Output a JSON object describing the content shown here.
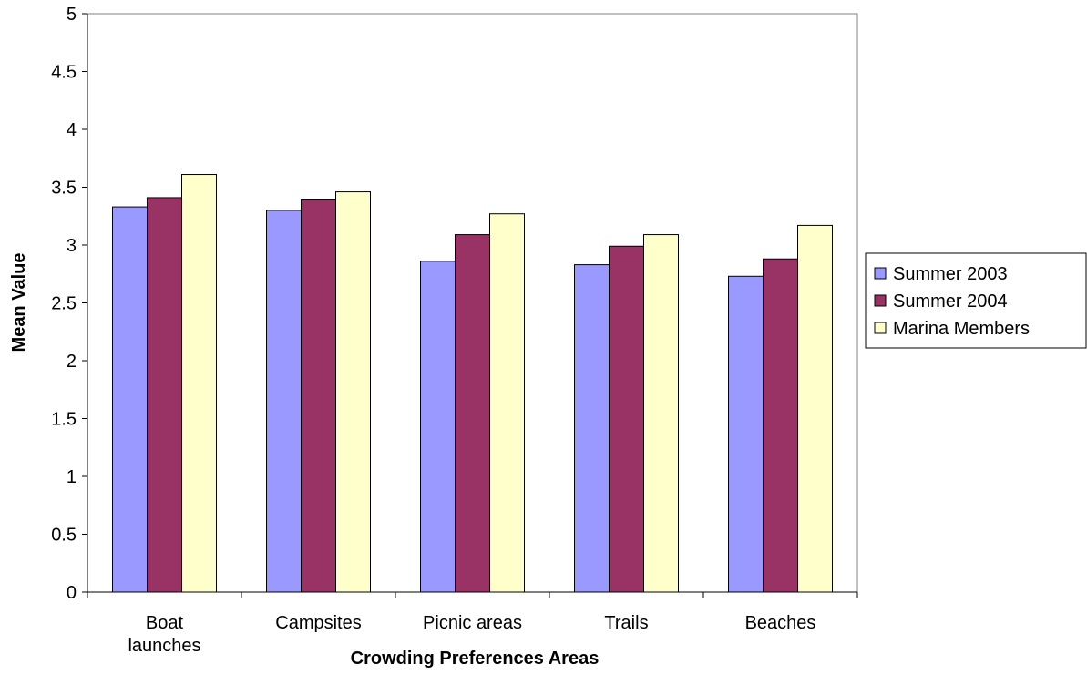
{
  "chart_data": {
    "type": "bar",
    "title": "",
    "xlabel": "Crowding Preferences Areas",
    "ylabel": "Mean Value",
    "ylim": [
      0,
      5
    ],
    "yticks": [
      "0",
      "0.5",
      "1",
      "1.5",
      "2",
      "2.5",
      "3",
      "3.5",
      "4",
      "4.5",
      "5"
    ],
    "ytick_values": [
      0,
      0.5,
      1,
      1.5,
      2,
      2.5,
      3,
      3.5,
      4,
      4.5,
      5
    ],
    "categories": [
      [
        "Boat",
        "launches"
      ],
      [
        "Campsites"
      ],
      [
        "Picnic areas"
      ],
      [
        "Trails"
      ],
      [
        "Beaches"
      ]
    ],
    "series": [
      {
        "name": "Summer 2003",
        "color": "#9999ff",
        "values": [
          3.33,
          3.3,
          2.86,
          2.83,
          2.73
        ]
      },
      {
        "name": "Summer 2004",
        "color": "#993366",
        "values": [
          3.41,
          3.39,
          3.09,
          2.99,
          2.88
        ]
      },
      {
        "name": "Marina Members",
        "color": "#ffffcc",
        "values": [
          3.61,
          3.46,
          3.27,
          3.09,
          3.17
        ]
      }
    ],
    "grid": false,
    "legend_position": "right"
  }
}
